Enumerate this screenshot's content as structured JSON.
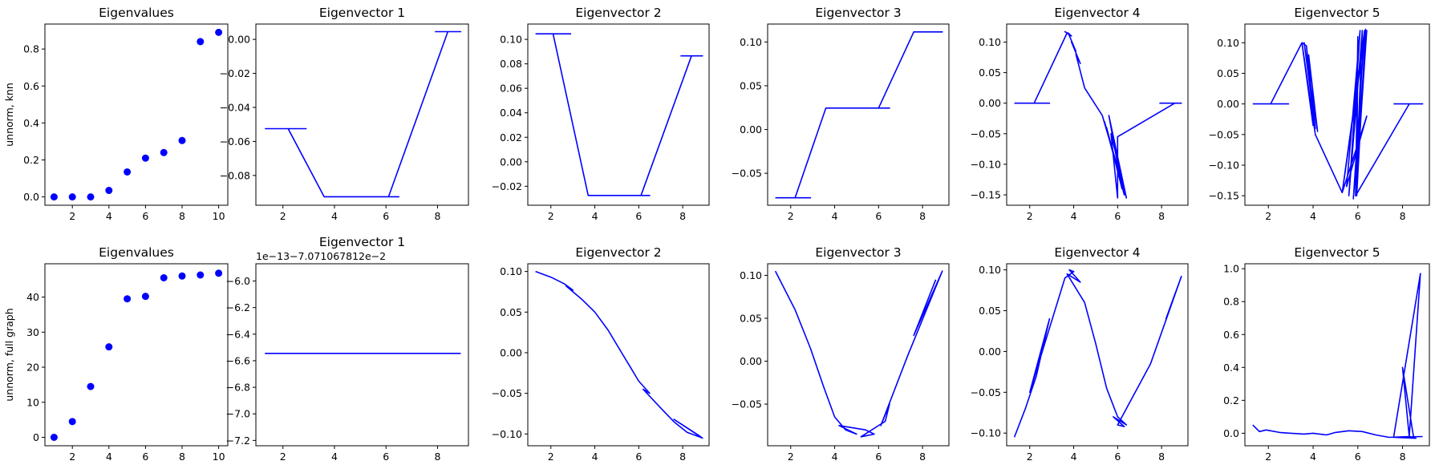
{
  "chart_data": [
    {
      "type": "scatter",
      "title": "Eigenvalues",
      "ylabel": "unnorm, knn",
      "xlim": [
        0.5,
        10.5
      ],
      "ylim": [
        -0.045,
        0.935
      ],
      "xticks": [
        2,
        4,
        6,
        8,
        10
      ],
      "yticks": [
        0.0,
        0.2,
        0.4,
        0.6,
        0.8
      ],
      "ytick_labels": [
        "0.0",
        "0.2",
        "0.4",
        "0.6",
        "0.8"
      ],
      "points": [
        [
          1,
          0
        ],
        [
          2,
          0
        ],
        [
          3,
          0
        ],
        [
          4,
          0.035
        ],
        [
          5,
          0.135
        ],
        [
          6,
          0.21
        ],
        [
          7,
          0.24
        ],
        [
          8,
          0.305
        ],
        [
          9,
          0.84
        ],
        [
          10,
          0.89
        ]
      ]
    },
    {
      "type": "line",
      "title": "Eigenvector 1",
      "xlim": [
        0.95,
        9.2
      ],
      "ylim": [
        -0.0975,
        0.009
      ],
      "xticks": [
        2,
        4,
        6,
        8
      ],
      "yticks": [
        -0.08,
        -0.06,
        -0.04,
        -0.02,
        0.0
      ],
      "ytick_labels": [
        "−0.08",
        "−0.06",
        "−0.04",
        "−0.02",
        "0.00"
      ],
      "lines": [
        [
          [
            1.3,
            -0.0525
          ],
          [
            2.9,
            -0.0525
          ],
          [
            2.2,
            -0.0525
          ],
          [
            3.6,
            -0.0925
          ],
          [
            6.5,
            -0.0925
          ],
          [
            6.1,
            -0.0925
          ],
          [
            8.4,
            0.0045
          ],
          [
            8.9,
            0.0045
          ],
          [
            7.9,
            0.0045
          ]
        ]
      ]
    },
    {
      "type": "line",
      "title": "Eigenvector 2",
      "xlim": [
        0.95,
        9.2
      ],
      "ylim": [
        -0.0355,
        0.1125
      ],
      "xticks": [
        2,
        4,
        6,
        8
      ],
      "yticks": [
        -0.02,
        0.0,
        0.02,
        0.04,
        0.06,
        0.08,
        0.1
      ],
      "ytick_labels": [
        "−0.02",
        "0.00",
        "0.02",
        "0.04",
        "0.06",
        "0.08",
        "0.10"
      ],
      "lines": [
        [
          [
            1.3,
            0.1045
          ],
          [
            2.9,
            0.1045
          ],
          [
            2.1,
            0.1045
          ],
          [
            3.7,
            -0.0275
          ],
          [
            6.5,
            -0.0275
          ],
          [
            6.1,
            -0.0275
          ],
          [
            8.4,
            0.0865
          ],
          [
            8.9,
            0.0865
          ],
          [
            7.9,
            0.0865
          ]
        ]
      ]
    },
    {
      "type": "line",
      "title": "Eigenvector 3",
      "xlim": [
        0.95,
        9.2
      ],
      "ylim": [
        -0.0865,
        0.1205
      ],
      "xticks": [
        2,
        4,
        6,
        8
      ],
      "yticks": [
        -0.05,
        0.0,
        0.05,
        0.1
      ],
      "ytick_labels": [
        "−0.05",
        "0.00",
        "0.05",
        "0.10"
      ],
      "lines": [
        [
          [
            1.3,
            -0.078
          ],
          [
            2.9,
            -0.078
          ],
          [
            2.2,
            -0.078
          ],
          [
            3.6,
            0.0245
          ],
          [
            6.5,
            0.0245
          ],
          [
            6.0,
            0.0245
          ],
          [
            7.6,
            0.1115
          ],
          [
            8.9,
            0.1115
          ],
          [
            8.3,
            0.1115
          ]
        ]
      ]
    },
    {
      "type": "line",
      "title": "Eigenvector 4",
      "xlim": [
        0.95,
        9.2
      ],
      "ylim": [
        -0.167,
        0.1295
      ],
      "xticks": [
        2,
        4,
        6,
        8
      ],
      "yticks": [
        -0.15,
        -0.1,
        -0.05,
        0.0,
        0.05,
        0.1
      ],
      "ytick_labels": [
        "−0.15",
        "−0.10",
        "−0.05",
        "0.00",
        "0.05",
        "0.10"
      ],
      "lines": [
        [
          [
            1.3,
            0.0
          ],
          [
            2.9,
            0.0
          ],
          [
            2.2,
            0.0
          ],
          [
            3.7,
            0.115
          ],
          [
            3.6,
            0.117
          ],
          [
            3.9,
            0.11
          ],
          [
            3.75,
            0.115
          ],
          [
            4.1,
            0.085
          ],
          [
            3.9,
            0.1
          ],
          [
            4.3,
            0.065
          ],
          [
            4.1,
            0.08
          ],
          [
            4.5,
            0.025
          ],
          [
            5.3,
            -0.02
          ],
          [
            6.4,
            -0.155
          ],
          [
            5.4,
            -0.03
          ],
          [
            6.3,
            -0.15
          ],
          [
            5.5,
            -0.04
          ],
          [
            6.2,
            -0.14
          ],
          [
            5.6,
            -0.02
          ],
          [
            6.4,
            -0.155
          ],
          [
            5.7,
            -0.05
          ],
          [
            6.0,
            -0.155
          ],
          [
            6.0,
            -0.055
          ],
          [
            8.6,
            0.0
          ],
          [
            8.9,
            0.0
          ],
          [
            7.9,
            0.0
          ]
        ]
      ]
    },
    {
      "type": "line",
      "title": "Eigenvector 5",
      "xlim": [
        0.95,
        9.2
      ],
      "ylim": [
        -0.1655,
        0.1305
      ],
      "xticks": [
        2,
        4,
        6,
        8
      ],
      "yticks": [
        -0.15,
        -0.1,
        -0.05,
        0.0,
        0.05,
        0.1
      ],
      "ytick_labels": [
        "−0.15",
        "−0.10",
        "−0.05",
        "0.00",
        "0.05",
        "0.10"
      ],
      "lines": [
        [
          [
            1.3,
            0.0
          ],
          [
            2.9,
            0.0
          ],
          [
            2.1,
            0.0
          ],
          [
            3.5,
            0.1
          ],
          [
            3.7,
            0.095
          ],
          [
            4.1,
            -0.04
          ],
          [
            3.6,
            0.1
          ],
          [
            4.2,
            -0.045
          ],
          [
            3.8,
            0.08
          ],
          [
            4.0,
            -0.035
          ],
          [
            3.5,
            0.1
          ],
          [
            4.1,
            -0.05
          ],
          [
            5.3,
            -0.145
          ],
          [
            6.3,
            0.12
          ],
          [
            5.8,
            -0.155
          ],
          [
            6.4,
            0.12
          ],
          [
            5.9,
            -0.15
          ],
          [
            6.2,
            0.12
          ],
          [
            5.6,
            -0.15
          ],
          [
            6.1,
            0.12
          ],
          [
            5.5,
            -0.135
          ],
          [
            6.4,
            -0.02
          ],
          [
            5.3,
            -0.145
          ],
          [
            6.35,
            0.122
          ],
          [
            5.95,
            -0.15
          ],
          [
            6.0,
            0.11
          ],
          [
            5.9,
            -0.15
          ],
          [
            8.3,
            0.0
          ],
          [
            8.9,
            0.0
          ],
          [
            7.6,
            0.0
          ]
        ]
      ]
    },
    {
      "type": "scatter",
      "title": "Eigenvalues",
      "ylabel": "unnorm, full graph",
      "xlim": [
        0.5,
        10.5
      ],
      "ylim": [
        -2.4,
        49.5
      ],
      "xticks": [
        2,
        4,
        6,
        8,
        10
      ],
      "yticks": [
        0,
        10,
        20,
        30,
        40
      ],
      "ytick_labels": [
        "0",
        "10",
        "20",
        "30",
        "40"
      ],
      "points": [
        [
          1,
          0
        ],
        [
          2,
          4.5
        ],
        [
          3,
          14.5
        ],
        [
          4,
          25.8
        ],
        [
          5,
          39.5
        ],
        [
          6,
          40.2
        ],
        [
          7,
          45.5
        ],
        [
          8,
          46
        ],
        [
          9,
          46.3
        ],
        [
          10,
          46.8
        ]
      ]
    },
    {
      "type": "line",
      "title": "Eigenvector 1",
      "offset_text": "1e−13−7.071067812e−2",
      "xlim": [
        0.95,
        9.2
      ],
      "ylim": [
        -7.24,
        -5.87
      ],
      "xticks": [
        2,
        4,
        6,
        8
      ],
      "yticks": [
        -7.2,
        -7.0,
        -6.8,
        -6.6,
        -6.4,
        -6.2,
        -6.0
      ],
      "ytick_labels": [
        "−7.2",
        "−7.0",
        "−6.8",
        "−6.6",
        "−6.4",
        "−6.2",
        "−6.0"
      ],
      "lines": [
        [
          [
            1.3,
            -6.545
          ],
          [
            8.9,
            -6.545
          ]
        ]
      ]
    },
    {
      "type": "line",
      "title": "Eigenvector 2",
      "xlim": [
        0.95,
        9.2
      ],
      "ylim": [
        -0.1145,
        0.1095
      ],
      "xticks": [
        2,
        4,
        6,
        8
      ],
      "yticks": [
        -0.1,
        -0.05,
        0.0,
        0.05,
        0.1
      ],
      "ytick_labels": [
        "−0.10",
        "−0.05",
        "0.00",
        "0.05",
        "0.10"
      ],
      "lines": [
        [
          [
            1.3,
            0.1
          ],
          [
            2.0,
            0.093
          ],
          [
            2.6,
            0.085
          ],
          [
            3.0,
            0.077
          ],
          [
            2.7,
            0.082
          ],
          [
            3.4,
            0.066
          ],
          [
            4.0,
            0.05
          ],
          [
            4.6,
            0.028
          ],
          [
            5.2,
            0.001
          ],
          [
            5.6,
            -0.017
          ],
          [
            6.0,
            -0.035
          ],
          [
            6.5,
            -0.05
          ],
          [
            6.2,
            -0.045
          ],
          [
            7.0,
            -0.068
          ],
          [
            7.6,
            -0.085
          ],
          [
            8.2,
            -0.098
          ],
          [
            8.9,
            -0.105
          ],
          [
            7.6,
            -0.082
          ],
          [
            8.8,
            -0.103
          ]
        ]
      ]
    },
    {
      "type": "line",
      "title": "Eigenvector 3",
      "xlim": [
        0.95,
        9.2
      ],
      "ylim": [
        -0.0985,
        0.1135
      ],
      "xticks": [
        2,
        4,
        6,
        8
      ],
      "yticks": [
        -0.05,
        0.0,
        0.05,
        0.1
      ],
      "ytick_labels": [
        "−0.05",
        "0.00",
        "0.05",
        "0.10"
      ],
      "lines": [
        [
          [
            1.3,
            0.105
          ],
          [
            2.2,
            0.06
          ],
          [
            2.9,
            0.015
          ],
          [
            3.5,
            -0.03
          ],
          [
            4.0,
            -0.065
          ],
          [
            4.5,
            -0.08
          ],
          [
            5.0,
            -0.085
          ],
          [
            4.2,
            -0.075
          ],
          [
            5.4,
            -0.08
          ],
          [
            5.8,
            -0.085
          ],
          [
            5.2,
            -0.088
          ],
          [
            6.3,
            -0.07
          ],
          [
            6.5,
            -0.05
          ],
          [
            6.1,
            -0.075
          ],
          [
            7.3,
            0.005
          ],
          [
            8.1,
            0.055
          ],
          [
            8.9,
            0.105
          ],
          [
            7.6,
            0.03
          ],
          [
            8.6,
            0.095
          ]
        ]
      ]
    },
    {
      "type": "line",
      "title": "Eigenvector 4",
      "xlim": [
        0.95,
        9.2
      ],
      "ylim": [
        -0.1155,
        0.1075
      ],
      "xticks": [
        2,
        4,
        6,
        8
      ],
      "yticks": [
        -0.1,
        -0.05,
        0.0,
        0.05,
        0.1
      ],
      "ytick_labels": [
        "−0.10",
        "−0.05",
        "0.00",
        "0.05",
        "0.10"
      ],
      "lines": [
        [
          [
            1.3,
            -0.105
          ],
          [
            1.8,
            -0.07
          ],
          [
            2.3,
            -0.03
          ],
          [
            2.9,
            0.04
          ],
          [
            2.0,
            -0.05
          ],
          [
            3.6,
            0.09
          ],
          [
            4.0,
            0.098
          ],
          [
            3.8,
            0.1
          ],
          [
            4.3,
            0.085
          ],
          [
            3.7,
            0.095
          ],
          [
            4.5,
            0.06
          ],
          [
            5.0,
            0.01
          ],
          [
            5.5,
            -0.045
          ],
          [
            6.0,
            -0.08
          ],
          [
            6.4,
            -0.09
          ],
          [
            5.8,
            -0.08
          ],
          [
            6.3,
            -0.092
          ],
          [
            6.0,
            -0.09
          ],
          [
            7.5,
            -0.015
          ],
          [
            8.9,
            0.092
          ],
          [
            8.2,
            0.04
          ],
          [
            8.6,
            0.07
          ]
        ]
      ]
    },
    {
      "type": "line",
      "title": "Eigenvector 5",
      "xlim": [
        0.95,
        9.2
      ],
      "ylim": [
        -0.076,
        1.03
      ],
      "xticks": [
        2,
        4,
        6,
        8
      ],
      "yticks": [
        0.0,
        0.2,
        0.4,
        0.6,
        0.8,
        1.0
      ],
      "ytick_labels": [
        "0.0",
        "0.2",
        "0.4",
        "0.6",
        "0.8",
        "1.0"
      ],
      "lines": [
        [
          [
            1.3,
            0.05
          ],
          [
            1.6,
            0.01
          ],
          [
            1.9,
            0.02
          ],
          [
            2.5,
            0.005
          ],
          [
            3.0,
            0.0
          ],
          [
            3.6,
            -0.005
          ],
          [
            4.0,
            0.0
          ],
          [
            4.6,
            -0.01
          ],
          [
            5.0,
            0.005
          ],
          [
            5.6,
            0.015
          ],
          [
            6.2,
            0.01
          ],
          [
            6.8,
            -0.01
          ],
          [
            7.4,
            -0.025
          ],
          [
            8.3,
            -0.02
          ],
          [
            8.6,
            -0.03
          ],
          [
            7.6,
            -0.025
          ],
          [
            8.8,
            0.97
          ],
          [
            8.3,
            -0.02
          ],
          [
            8.0,
            0.4
          ],
          [
            8.5,
            -0.03
          ],
          [
            7.6,
            -0.025
          ],
          [
            8.9,
            -0.02
          ]
        ]
      ]
    }
  ]
}
